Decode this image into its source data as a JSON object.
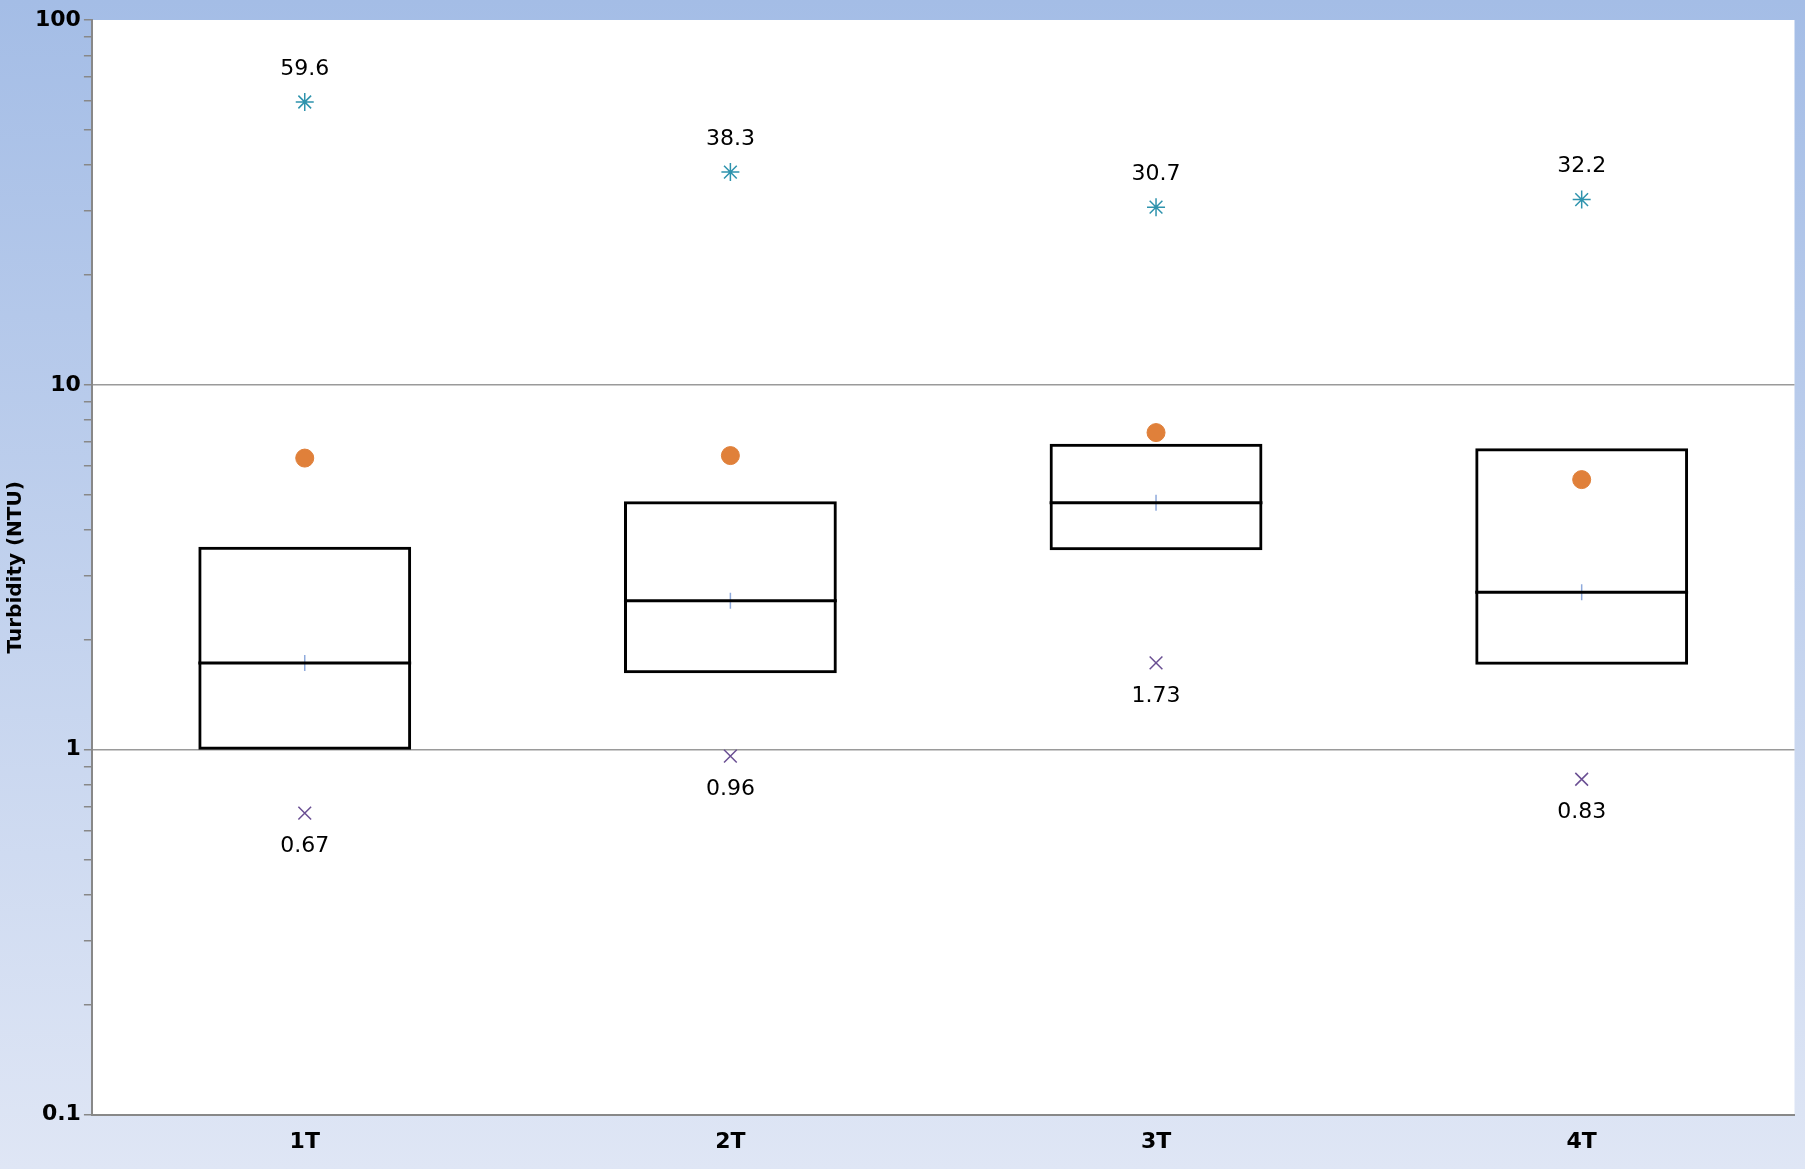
{
  "chart_data": {
    "type": "box",
    "categories": [
      "1T",
      "2T",
      "3T",
      "4T"
    ],
    "ylabel": "Turbidity (NTU)",
    "log": "y",
    "ylim": [
      0.1,
      100
    ],
    "yticks": [
      0.1,
      {
        "value": 0.2,
        "label": null
      },
      {
        "value": 0.3,
        "label": null
      },
      {
        "value": 0.4,
        "label": null
      },
      {
        "value": 0.5,
        "label": null
      },
      {
        "value": 0.6,
        "label": null
      },
      {
        "value": 0.7,
        "label": null
      },
      {
        "value": 0.8,
        "label": null
      },
      {
        "value": 0.9,
        "label": null
      },
      1,
      {
        "value": 2,
        "label": null
      },
      {
        "value": 3,
        "label": null
      },
      {
        "value": 4,
        "label": null
      },
      {
        "value": 5,
        "label": null
      },
      {
        "value": 6,
        "label": null
      },
      {
        "value": 7,
        "label": null
      },
      {
        "value": 8,
        "label": null
      },
      {
        "value": 9,
        "label": null
      },
      10,
      {
        "value": 20,
        "label": null
      },
      {
        "value": 30,
        "label": null
      },
      {
        "value": 40,
        "label": null
      },
      {
        "value": 50,
        "label": null
      },
      {
        "value": 60,
        "label": null
      },
      {
        "value": 70,
        "label": null
      },
      {
        "value": 80,
        "label": null
      },
      {
        "value": 90,
        "label": null
      },
      100
    ],
    "grid": "y",
    "boxes": [
      {
        "low": 1.0,
        "q1": 1.0,
        "median": 1.73,
        "q3": 3.6,
        "high": 3.6,
        "mean": 6.3
      },
      {
        "low": 1.62,
        "q1": 1.62,
        "median": 2.56,
        "q3": 4.8,
        "high": 4.8,
        "mean": 6.4
      },
      {
        "low": 3.52,
        "q1": 3.52,
        "median": 4.75,
        "q3": 6.9,
        "high": 6.9,
        "mean": 7.4
      },
      {
        "low": 1.71,
        "q1": 1.71,
        "median": 2.7,
        "q3": 6.7,
        "high": 6.7,
        "mean": 5.5
      }
    ],
    "series": [
      {
        "type": "scatter",
        "color": "#2e93ad",
        "x": [
          "1T",
          "2T",
          "3T",
          "4T"
        ],
        "values": [
          59.6,
          38.3,
          30.7,
          32.2
        ],
        "value_labels": [
          "59.6",
          "38.3",
          "30.7",
          "32.2"
        ]
      },
      {
        "type": "scatter",
        "marker": "cross",
        "color": "#6a4f93",
        "x": [
          "1T",
          "2T",
          "3T",
          "4T"
        ],
        "values": [
          0.67,
          0.96,
          1.73,
          0.83
        ],
        "value_labels": [
          "0.67",
          "0.96",
          "1.73",
          "0.83"
        ]
      },
      {
        "type": "scatter",
        "marker": "cross",
        "color": "#8faadc",
        "x": [
          "1T",
          "2T",
          "3T",
          "4T"
        ],
        "values": [
          1.73,
          2.56,
          4.75,
          2.7
        ]
      }
    ]
  }
}
